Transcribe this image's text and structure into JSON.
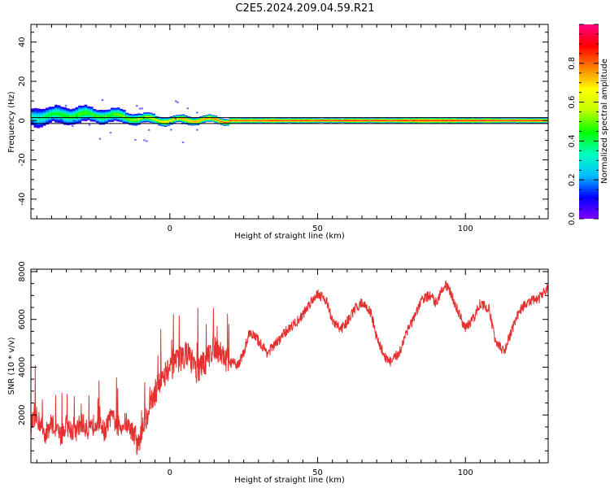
{
  "title": "C2E5.2024.209.04.59.R21",
  "chart_data": [
    {
      "type": "heatmap",
      "xlabel": "Height of straight line (km)",
      "ylabel": "Frequency (Hz)",
      "xlim": [
        -47,
        128
      ],
      "ylim": [
        -50,
        49
      ],
      "x_ticks": [
        0,
        50,
        100
      ],
      "x_tick_labels": [
        "0",
        "50",
        "100"
      ],
      "y_ticks": [
        -40,
        -20,
        0,
        20,
        40
      ],
      "y_tick_labels": [
        "-40",
        "-20",
        "0",
        "20",
        "40"
      ],
      "grid": false,
      "colormap": [
        "#8000ff",
        "#0000ff",
        "#00c0ff",
        "#00ffc0",
        "#00ff00",
        "#c0ff00",
        "#ffff00",
        "#ff8000",
        "#ff0000",
        "#ff0080"
      ],
      "background": "#ffffff",
      "reference_lines_hz": [
        1.5,
        -1.5
      ],
      "reference_line_color": "#000000",
      "band": [
        {
          "x": -46,
          "center": 2.0,
          "half_width": 5.0,
          "amplitude": 0.35
        },
        {
          "x": -40,
          "center": 2.5,
          "half_width": 4.0,
          "amplitude": 0.45
        },
        {
          "x": -30,
          "center": 3.0,
          "half_width": 4.0,
          "amplitude": 0.5
        },
        {
          "x": -20,
          "center": 2.5,
          "half_width": 3.5,
          "amplitude": 0.5
        },
        {
          "x": -10,
          "center": 1.0,
          "half_width": 2.5,
          "amplitude": 0.6
        },
        {
          "x": 0,
          "center": 0.0,
          "half_width": 2.0,
          "amplitude": 0.75
        },
        {
          "x": 10,
          "center": 0.5,
          "half_width": 2.0,
          "amplitude": 0.8
        },
        {
          "x": 20,
          "center": 0.0,
          "half_width": 1.5,
          "amplitude": 0.9
        },
        {
          "x": 50,
          "center": 0.0,
          "half_width": 1.2,
          "amplitude": 0.95
        },
        {
          "x": 90,
          "center": 0.0,
          "half_width": 1.5,
          "amplitude": 0.95
        },
        {
          "x": 128,
          "center": 0.0,
          "half_width": 1.2,
          "amplitude": 0.95
        }
      ],
      "colorbar": {
        "label": "Normalized spectral amplitude",
        "range": [
          0.0,
          1.0
        ],
        "ticks": [
          0.0,
          0.2,
          0.4,
          0.6,
          0.8
        ],
        "tick_labels": [
          "0.0",
          "0.2",
          "0.4",
          "0.6",
          "0.8"
        ]
      }
    },
    {
      "type": "line",
      "xlabel": "Height of straight line (km)",
      "ylabel": "SNR (10 * v/v)",
      "xlim": [
        -47,
        128
      ],
      "ylim": [
        0,
        8100
      ],
      "x_ticks": [
        0,
        50,
        100
      ],
      "x_tick_labels": [
        "0",
        "50",
        "100"
      ],
      "y_ticks": [
        2000,
        4000,
        6000,
        8000
      ],
      "y_tick_labels": [
        "2000",
        "4000",
        "6000",
        "8000"
      ],
      "grid": false,
      "series": [
        {
          "color": "#e53030",
          "x": [
            -47,
            -45,
            -42,
            -40,
            -37,
            -35,
            -32,
            -30,
            -27,
            -25,
            -22,
            -20,
            -17,
            -15,
            -12,
            -11,
            -10,
            -9,
            -7,
            -5,
            -3,
            0,
            3,
            6,
            9,
            12,
            15,
            18,
            20,
            23,
            25,
            27,
            30,
            33,
            36,
            38,
            40,
            43,
            45,
            48,
            50,
            53,
            55,
            58,
            60,
            63,
            65,
            68,
            70,
            73,
            75,
            78,
            80,
            83,
            85,
            88,
            90,
            93,
            95,
            98,
            100,
            103,
            105,
            108,
            110,
            113,
            115,
            118,
            120,
            123,
            125,
            128
          ],
          "values": [
            1600,
            1900,
            1200,
            1700,
            1100,
            1600,
            1200,
            1700,
            1300,
            1800,
            1300,
            1900,
            1500,
            1700,
            1200,
            700,
            1000,
            1500,
            2300,
            2900,
            3600,
            3900,
            4300,
            4600,
            3800,
            4200,
            4900,
            4500,
            4200,
            4100,
            4600,
            5500,
            5100,
            4600,
            5000,
            5300,
            5600,
            5900,
            6200,
            6800,
            7100,
            6800,
            5900,
            5600,
            5900,
            6500,
            6700,
            6300,
            5200,
            4400,
            4200,
            4700,
            5500,
            6100,
            6800,
            7000,
            6700,
            7500,
            7100,
            6200,
            5600,
            6100,
            6700,
            6400,
            5200,
            4600,
            5300,
            6300,
            6600,
            6800,
            6900,
            7300
          ]
        }
      ]
    }
  ]
}
